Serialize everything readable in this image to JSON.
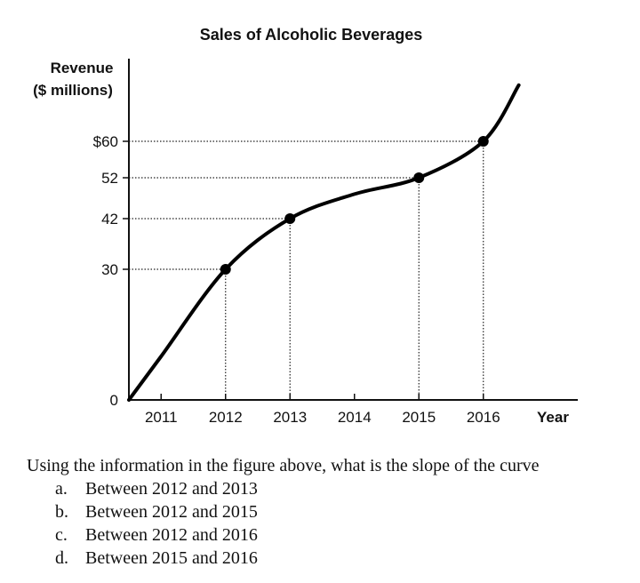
{
  "chart_data": {
    "type": "line",
    "title": "Sales of Alcoholic Beverages",
    "ylabel_lines": [
      "Revenue",
      "($ millions)"
    ],
    "xlabel": "Year",
    "y_tick_labels": [
      {
        "value": 0,
        "label": "0"
      },
      {
        "value": 30,
        "label": "30"
      },
      {
        "value": 42,
        "label": "42"
      },
      {
        "value": 52,
        "label": "52"
      },
      {
        "value": 60,
        "label": "$60"
      }
    ],
    "x_tick_labels": [
      {
        "value": 2011,
        "label": "2011"
      },
      {
        "value": 2012,
        "label": "2012"
      },
      {
        "value": 2013,
        "label": "2013"
      },
      {
        "value": 2014,
        "label": "2014"
      },
      {
        "value": 2015,
        "label": "2015"
      },
      {
        "value": 2016,
        "label": "2016"
      }
    ],
    "points": [
      {
        "x": 2012,
        "y": 30
      },
      {
        "x": 2013,
        "y": 42
      },
      {
        "x": 2015,
        "y": 52
      },
      {
        "x": 2016,
        "y": 60
      }
    ],
    "curve": [
      {
        "x": 2010.5,
        "y": 0
      },
      {
        "x": 2011,
        "y": 10
      },
      {
        "x": 2012,
        "y": 30
      },
      {
        "x": 2013,
        "y": 42
      },
      {
        "x": 2014,
        "y": 48
      },
      {
        "x": 2015,
        "y": 52
      },
      {
        "x": 2016,
        "y": 60
      },
      {
        "x": 2016.55,
        "y": 72
      }
    ],
    "xlim": [
      2010.5,
      2017.5
    ],
    "ylim": [
      0,
      75
    ],
    "grid": false,
    "legend": "none"
  },
  "question": {
    "text": "Using the information in the figure above, what is the slope of the curve",
    "options": [
      {
        "letter": "a.",
        "text": "Between 2012 and 2013"
      },
      {
        "letter": "b.",
        "text": "Between 2012 and 2015"
      },
      {
        "letter": "c.",
        "text": "Between 2012 and 2016"
      },
      {
        "letter": "d.",
        "text": "Between 2015 and 2016"
      }
    ]
  }
}
